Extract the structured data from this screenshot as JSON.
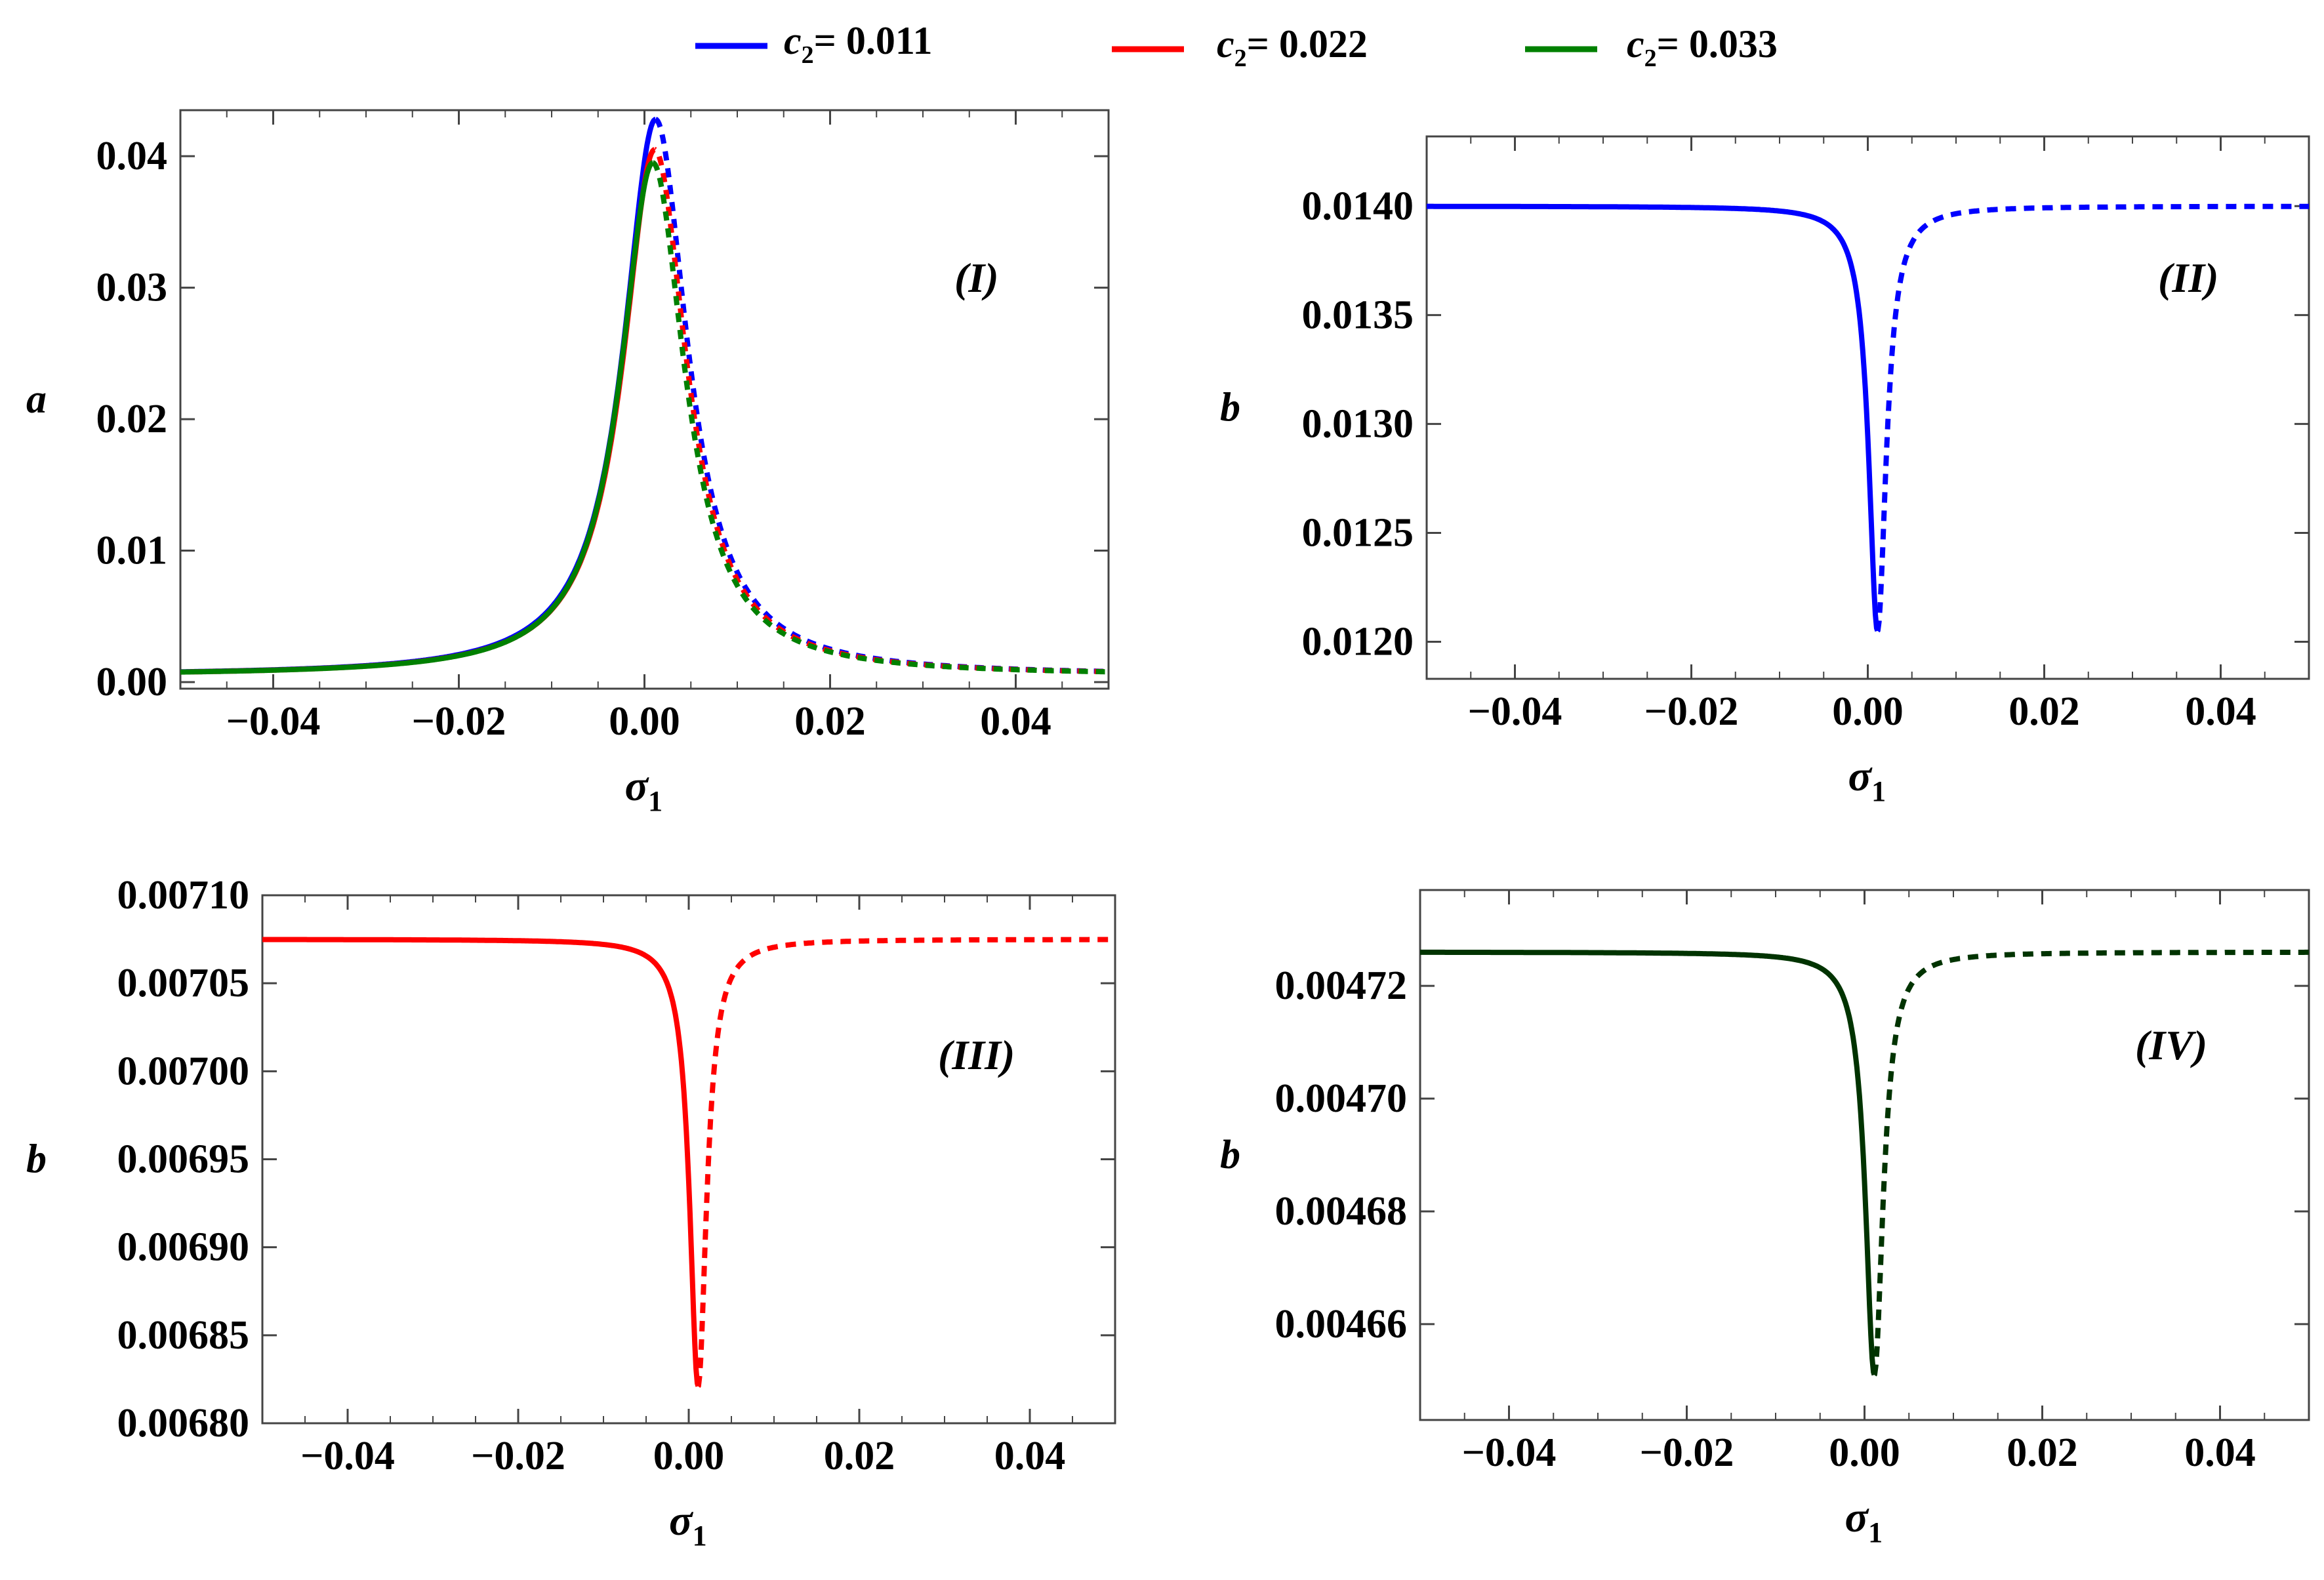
{
  "legend": [
    {
      "label_main": "c",
      "label_sub": "2",
      "label_rest": "= 0.011",
      "color": "#0000ff"
    },
    {
      "label_main": "c",
      "label_sub": "2",
      "label_rest": "= 0.022",
      "color": "#ff0000"
    },
    {
      "label_main": "c",
      "label_sub": "2",
      "label_rest": "= 0.033",
      "color": "#008000"
    }
  ],
  "chart_data": [
    {
      "type": "line",
      "panel": "(I)",
      "ylabel": "a",
      "xlabel_symbol": "σ",
      "xlabel_sub": "1",
      "xlim": [
        -0.05,
        0.05
      ],
      "ylim": [
        -0.0005,
        0.0435
      ],
      "xticks": [
        -0.04,
        -0.02,
        0.0,
        0.02,
        0.04
      ],
      "xtick_labels": [
        "−0.04",
        "−0.02",
        "0.00",
        "0.02",
        "0.04"
      ],
      "yticks": [
        0.0,
        0.01,
        0.02,
        0.03,
        0.04
      ],
      "ytick_labels": [
        "0.00",
        "0.01",
        "0.02",
        "0.03",
        "0.04"
      ],
      "series": [
        {
          "name": "c2 = 0.011",
          "color": "#0000ff",
          "peak_x": 0.0012,
          "peak_y": 0.0428,
          "baseline_y": 0.0005
        },
        {
          "name": "c2 = 0.022",
          "color": "#ff0000",
          "peak_x": 0.0011,
          "peak_y": 0.0405,
          "baseline_y": 0.0005
        },
        {
          "name": "c2 = 0.033",
          "color": "#008000",
          "peak_x": 0.0009,
          "peak_y": 0.0395,
          "baseline_y": 0.0005
        }
      ]
    },
    {
      "type": "line",
      "panel": "(II)",
      "ylabel": "b",
      "xlabel_symbol": "σ",
      "xlabel_sub": "1",
      "xlim": [
        -0.05,
        0.05
      ],
      "ylim": [
        0.01183,
        0.01432
      ],
      "xticks": [
        -0.04,
        -0.02,
        0.0,
        0.02,
        0.04
      ],
      "xtick_labels": [
        "−0.04",
        "−0.02",
        "0.00",
        "0.02",
        "0.04"
      ],
      "yticks": [
        0.012,
        0.0125,
        0.013,
        0.0135,
        0.014
      ],
      "ytick_labels": [
        "0.0120",
        "0.0125",
        "0.0130",
        "0.0135",
        "0.0140"
      ],
      "series": [
        {
          "name": "c2 = 0.011",
          "color": "#0000ff",
          "baseline_y": 0.014,
          "dip_x": 0.0011,
          "dip_y": 0.01205
        }
      ]
    },
    {
      "type": "line",
      "panel": "(III)",
      "ylabel": "b",
      "xlabel_symbol": "σ",
      "xlabel_sub": "1",
      "xlim": [
        -0.05,
        0.05
      ],
      "ylim": [
        0.0068,
        0.0071
      ],
      "xticks": [
        -0.04,
        -0.02,
        0.0,
        0.02,
        0.04
      ],
      "xtick_labels": [
        "−0.04",
        "−0.02",
        "0.00",
        "0.02",
        "0.04"
      ],
      "yticks": [
        0.0068,
        0.00685,
        0.0069,
        0.00695,
        0.007,
        0.00705,
        0.0071
      ],
      "ytick_labels": [
        "0.00680",
        "0.00685",
        "0.00690",
        "0.00695",
        "0.00700",
        "0.00705",
        "0.00710"
      ],
      "series": [
        {
          "name": "c2 = 0.022",
          "color": "#ff0000",
          "baseline_y": 0.007075,
          "dip_x": 0.0011,
          "dip_y": 0.006821
        }
      ]
    },
    {
      "type": "line",
      "panel": "(IV)",
      "ylabel": "b",
      "xlabel_symbol": "σ",
      "xlabel_sub": "1",
      "xlim": [
        -0.05,
        0.05
      ],
      "ylim": [
        0.004643,
        0.004737
      ],
      "xticks": [
        -0.04,
        -0.02,
        0.0,
        0.02,
        0.04
      ],
      "xtick_labels": [
        "−0.04",
        "−0.02",
        "0.00",
        "0.02",
        "0.04"
      ],
      "yticks": [
        0.00466,
        0.00468,
        0.0047,
        0.00472
      ],
      "ytick_labels": [
        "0.00466",
        "0.00468",
        "0.00470",
        "0.00472"
      ],
      "series": [
        {
          "name": "c2 = 0.033",
          "color": "#003300",
          "baseline_y": 0.004726,
          "dip_x": 0.0011,
          "dip_y": 0.004651
        }
      ]
    }
  ]
}
